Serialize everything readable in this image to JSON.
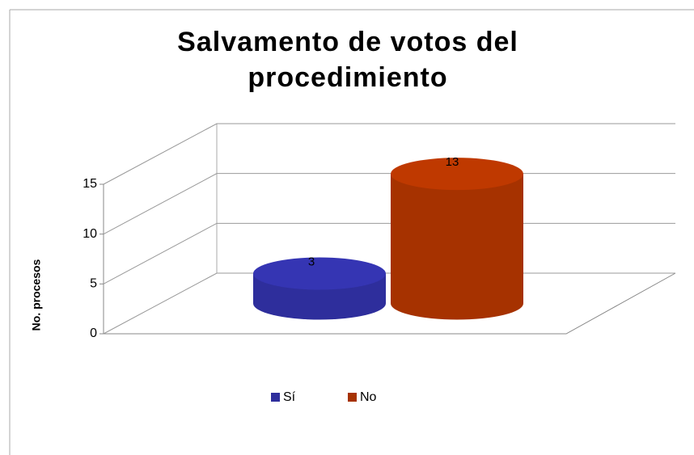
{
  "chart_data": {
    "type": "bar3d",
    "title": "Salvamento de votos del procedimiento",
    "y_label": "No. procesos",
    "categories": [
      null
    ],
    "series": [
      {
        "name": "Sí",
        "color": "#2e2e9c",
        "values": [
          3
        ]
      },
      {
        "name": "No",
        "color": "#a63200",
        "values": [
          13
        ]
      }
    ],
    "ylim": [
      0,
      15
    ],
    "yticks": [
      0,
      5,
      10,
      15
    ],
    "grid": true,
    "legend": "bottom"
  }
}
